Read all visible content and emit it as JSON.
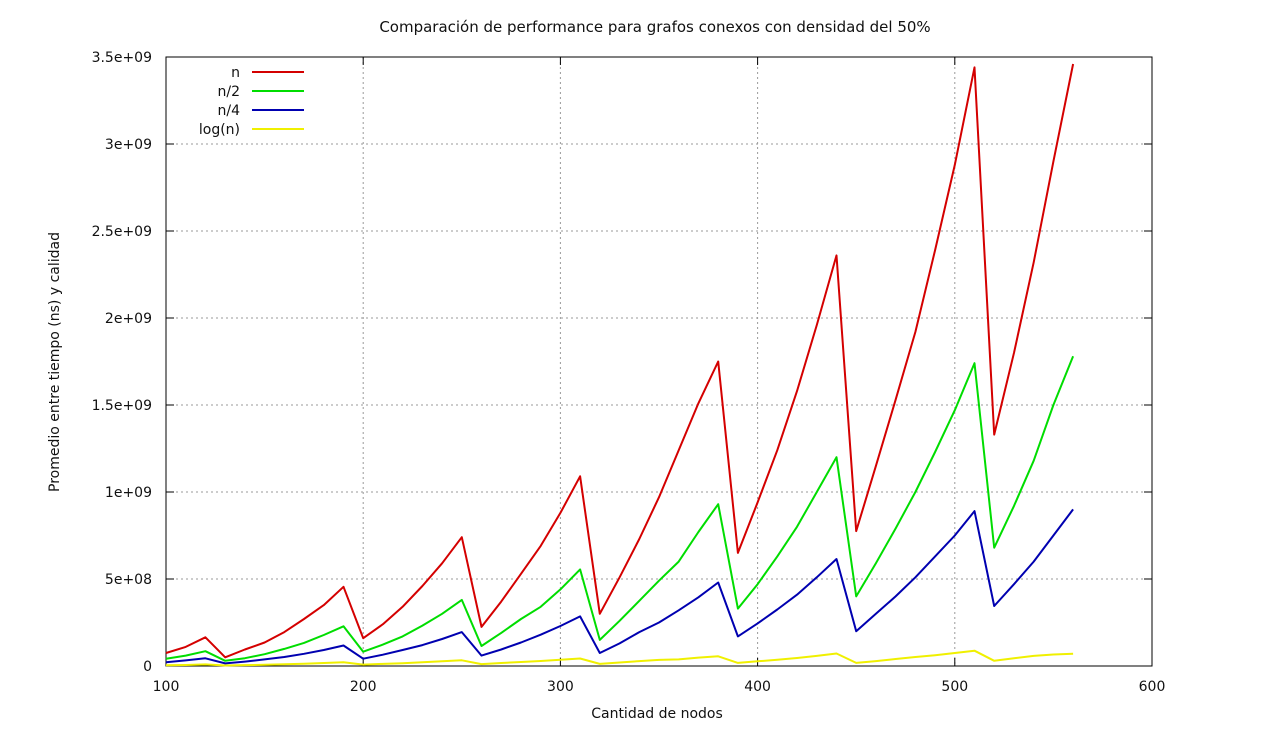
{
  "chart_data": {
    "type": "line",
    "title": "Comparación de performance para grafos conexos con densidad del 50%",
    "xlabel": "Cantidad de nodos",
    "ylabel": "Promedio entre tiempo (ns) y calidad",
    "xlim": [
      100,
      600
    ],
    "ylim": [
      0,
      3500000000
    ],
    "x_ticks": [
      100,
      200,
      300,
      400,
      500,
      600
    ],
    "x_tick_labels": [
      "100",
      "200",
      "300",
      "400",
      "500",
      "600"
    ],
    "y_ticks": [
      0,
      500000000,
      1000000000,
      1500000000,
      2000000000,
      2500000000,
      3000000000,
      3500000000
    ],
    "y_tick_labels": [
      "0",
      "5e+08",
      "1e+09",
      "1.5e+09",
      "2e+09",
      "2.5e+09",
      "3e+09",
      "3.5e+09"
    ],
    "grid": true,
    "legend_position": "top-left",
    "x": [
      100,
      110,
      120,
      130,
      140,
      150,
      160,
      170,
      180,
      190,
      200,
      210,
      220,
      230,
      240,
      250,
      260,
      270,
      280,
      290,
      300,
      310,
      320,
      330,
      340,
      350,
      360,
      370,
      380,
      390,
      400,
      410,
      420,
      430,
      440,
      450,
      460,
      470,
      480,
      490,
      500,
      510,
      520,
      530,
      540,
      550,
      560
    ],
    "series": [
      {
        "name": "n",
        "color": "#d40000",
        "values": [
          75000000,
          110000000,
          165000000,
          50000000,
          95000000,
          135000000,
          195000000,
          270000000,
          350000000,
          455000000,
          160000000,
          240000000,
          340000000,
          460000000,
          590000000,
          740000000,
          225000000,
          370000000,
          530000000,
          690000000,
          880000000,
          1090000000,
          300000000,
          510000000,
          730000000,
          970000000,
          1240000000,
          1510000000,
          1750000000,
          650000000,
          940000000,
          1240000000,
          1580000000,
          1960000000,
          2360000000,
          775000000,
          1150000000,
          1530000000,
          1920000000,
          2390000000,
          2880000000,
          3440000000,
          1330000000,
          1800000000,
          2320000000,
          2900000000,
          3460000000
        ]
      },
      {
        "name": "n/2",
        "color": "#00dd00",
        "values": [
          42000000,
          60000000,
          85000000,
          30000000,
          45000000,
          68000000,
          98000000,
          133000000,
          178000000,
          228000000,
          82000000,
          123000000,
          170000000,
          232000000,
          300000000,
          380000000,
          115000000,
          190000000,
          270000000,
          340000000,
          440000000,
          555000000,
          150000000,
          260000000,
          375000000,
          490000000,
          600000000,
          770000000,
          930000000,
          330000000,
          470000000,
          630000000,
          800000000,
          1000000000,
          1200000000,
          400000000,
          590000000,
          790000000,
          1000000000,
          1230000000,
          1470000000,
          1740000000,
          680000000,
          920000000,
          1180000000,
          1500000000,
          1780000000
        ]
      },
      {
        "name": "n/4",
        "color": "#0000b0",
        "values": [
          22000000,
          32000000,
          44000000,
          15000000,
          25000000,
          38000000,
          52000000,
          70000000,
          92000000,
          118000000,
          42000000,
          65000000,
          92000000,
          120000000,
          155000000,
          195000000,
          60000000,
          95000000,
          135000000,
          180000000,
          230000000,
          285000000,
          75000000,
          130000000,
          195000000,
          250000000,
          320000000,
          395000000,
          480000000,
          170000000,
          245000000,
          325000000,
          410000000,
          510000000,
          615000000,
          200000000,
          300000000,
          400000000,
          510000000,
          630000000,
          750000000,
          890000000,
          345000000,
          470000000,
          600000000,
          750000000,
          900000000
        ]
      },
      {
        "name": "log(n)",
        "color": "#f0f000",
        "values": [
          4000000,
          6000000,
          9000000,
          3000000,
          5000000,
          7000000,
          10000000,
          13000000,
          17000000,
          22000000,
          8000000,
          12000000,
          16000000,
          21000000,
          27000000,
          33000000,
          11000000,
          17000000,
          23000000,
          29000000,
          36000000,
          43000000,
          12000000,
          20000000,
          28000000,
          35000000,
          38000000,
          48000000,
          56000000,
          18000000,
          27000000,
          36000000,
          46000000,
          58000000,
          72000000,
          18000000,
          28000000,
          40000000,
          52000000,
          62000000,
          75000000,
          88000000,
          30000000,
          45000000,
          58000000,
          66000000,
          70000000
        ]
      }
    ]
  }
}
